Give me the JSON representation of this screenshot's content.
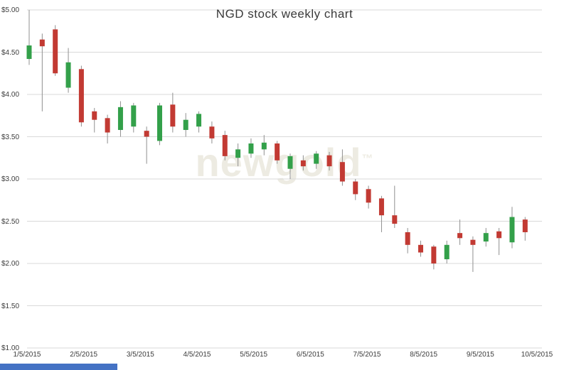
{
  "title": "NGD stock weekly chart",
  "watermark": {
    "text": "newgold",
    "tm": "™"
  },
  "colors": {
    "up": "#33a04a",
    "down": "#c23a33",
    "wick": "#909090",
    "grid": "#d9d9d9",
    "label": "#3c3c3c",
    "scrollbar": "#4472c4",
    "watermark": "#edebe2"
  },
  "y_axis": {
    "ticks": [
      {
        "label": "$5.00",
        "value": 5.0
      },
      {
        "label": "$4.50",
        "value": 4.5
      },
      {
        "label": "$4.00",
        "value": 4.0
      },
      {
        "label": "$3.50",
        "value": 3.5
      },
      {
        "label": "$3.00",
        "value": 3.0
      },
      {
        "label": "$2.50",
        "value": 2.5
      },
      {
        "label": "$2.00",
        "value": 2.0
      },
      {
        "label": "$1.50",
        "value": 1.5
      },
      {
        "label": "$1.00",
        "value": 1.0
      }
    ]
  },
  "x_axis": {
    "ticks": [
      "1/5/2015",
      "2/5/2015",
      "3/5/2015",
      "4/5/2015",
      "5/5/2015",
      "6/5/2015",
      "7/5/2015",
      "8/5/2015",
      "9/5/2015",
      "10/5/2015"
    ]
  },
  "chart_data": {
    "type": "candlestick",
    "title": "NGD stock weekly chart",
    "xlabel": "",
    "ylabel": "",
    "ylim": [
      1.0,
      5.0
    ],
    "grid": true,
    "interval": "weekly",
    "points": [
      {
        "date": "1/5/2015",
        "open": 4.42,
        "high": 5.0,
        "low": 4.35,
        "close": 4.58
      },
      {
        "date": "1/12/2015",
        "open": 4.65,
        "high": 4.72,
        "low": 3.8,
        "close": 4.57
      },
      {
        "date": "1/19/2015",
        "open": 4.77,
        "high": 4.82,
        "low": 4.22,
        "close": 4.25
      },
      {
        "date": "1/26/2015",
        "open": 4.08,
        "high": 4.55,
        "low": 4.02,
        "close": 4.38
      },
      {
        "date": "2/2/2015",
        "open": 4.3,
        "high": 4.34,
        "low": 3.62,
        "close": 3.67
      },
      {
        "date": "2/9/2015",
        "open": 3.8,
        "high": 3.84,
        "low": 3.55,
        "close": 3.7
      },
      {
        "date": "2/16/2015",
        "open": 3.72,
        "high": 3.76,
        "low": 3.42,
        "close": 3.55
      },
      {
        "date": "2/23/2015",
        "open": 3.58,
        "high": 3.92,
        "low": 3.5,
        "close": 3.85
      },
      {
        "date": "3/2/2015",
        "open": 3.62,
        "high": 3.9,
        "low": 3.55,
        "close": 3.87
      },
      {
        "date": "3/9/2015",
        "open": 3.57,
        "high": 3.62,
        "low": 3.18,
        "close": 3.5
      },
      {
        "date": "3/16/2015",
        "open": 3.45,
        "high": 3.9,
        "low": 3.4,
        "close": 3.87
      },
      {
        "date": "3/23/2015",
        "open": 3.88,
        "high": 4.02,
        "low": 3.55,
        "close": 3.62
      },
      {
        "date": "3/30/2015",
        "open": 3.58,
        "high": 3.78,
        "low": 3.5,
        "close": 3.7
      },
      {
        "date": "4/6/2015",
        "open": 3.62,
        "high": 3.8,
        "low": 3.55,
        "close": 3.77
      },
      {
        "date": "4/13/2015",
        "open": 3.62,
        "high": 3.68,
        "low": 3.42,
        "close": 3.48
      },
      {
        "date": "4/20/2015",
        "open": 3.52,
        "high": 3.57,
        "low": 3.22,
        "close": 3.27
      },
      {
        "date": "4/27/2015",
        "open": 3.25,
        "high": 3.42,
        "low": 3.15,
        "close": 3.35
      },
      {
        "date": "5/4/2015",
        "open": 3.3,
        "high": 3.48,
        "low": 3.25,
        "close": 3.42
      },
      {
        "date": "5/11/2015",
        "open": 3.35,
        "high": 3.52,
        "low": 3.28,
        "close": 3.43
      },
      {
        "date": "5/18/2015",
        "open": 3.42,
        "high": 3.45,
        "low": 3.18,
        "close": 3.22
      },
      {
        "date": "5/25/2015",
        "open": 3.12,
        "high": 3.3,
        "low": 3.0,
        "close": 3.27
      },
      {
        "date": "6/1/2015",
        "open": 3.22,
        "high": 3.28,
        "low": 3.1,
        "close": 3.15
      },
      {
        "date": "6/8/2015",
        "open": 3.18,
        "high": 3.33,
        "low": 3.12,
        "close": 3.3
      },
      {
        "date": "6/15/2015",
        "open": 3.28,
        "high": 3.32,
        "low": 3.1,
        "close": 3.15
      },
      {
        "date": "6/22/2015",
        "open": 3.2,
        "high": 3.35,
        "low": 2.92,
        "close": 2.97
      },
      {
        "date": "6/29/2015",
        "open": 2.97,
        "high": 3.0,
        "low": 2.75,
        "close": 2.82
      },
      {
        "date": "7/6/2015",
        "open": 2.88,
        "high": 2.92,
        "low": 2.65,
        "close": 2.72
      },
      {
        "date": "7/13/2015",
        "open": 2.77,
        "high": 2.8,
        "low": 2.37,
        "close": 2.57
      },
      {
        "date": "7/20/2015",
        "open": 2.57,
        "high": 2.92,
        "low": 2.42,
        "close": 2.47
      },
      {
        "date": "7/27/2015",
        "open": 2.37,
        "high": 2.42,
        "low": 2.12,
        "close": 2.22
      },
      {
        "date": "8/3/2015",
        "open": 2.22,
        "high": 2.27,
        "low": 2.08,
        "close": 2.13
      },
      {
        "date": "8/10/2015",
        "open": 2.2,
        "high": 2.22,
        "low": 1.93,
        "close": 2.0
      },
      {
        "date": "8/17/2015",
        "open": 2.05,
        "high": 2.27,
        "low": 2.0,
        "close": 2.22
      },
      {
        "date": "8/24/2015",
        "open": 2.36,
        "high": 2.52,
        "low": 2.22,
        "close": 2.3
      },
      {
        "date": "8/31/2015",
        "open": 2.28,
        "high": 2.32,
        "low": 1.9,
        "close": 2.22
      },
      {
        "date": "9/7/2015",
        "open": 2.26,
        "high": 2.42,
        "low": 2.2,
        "close": 2.36
      },
      {
        "date": "9/14/2015",
        "open": 2.38,
        "high": 2.42,
        "low": 2.1,
        "close": 2.3
      },
      {
        "date": "9/21/2015",
        "open": 2.25,
        "high": 2.67,
        "low": 2.18,
        "close": 2.55
      },
      {
        "date": "9/28/2015",
        "open": 2.52,
        "high": 2.55,
        "low": 2.27,
        "close": 2.37
      }
    ]
  }
}
